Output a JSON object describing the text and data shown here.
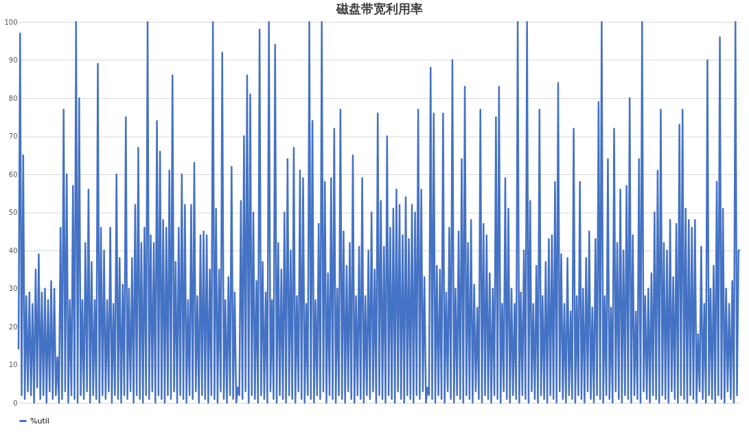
{
  "chart_data": {
    "type": "line",
    "title": "磁盘带宽利用率",
    "categories": [
      null,
      null,
      null,
      null,
      null,
      null,
      null,
      null,
      null,
      null,
      null,
      null,
      null,
      null,
      null,
      null,
      null,
      null,
      null,
      null,
      null,
      null,
      null,
      null,
      null,
      null,
      null,
      null,
      null,
      null,
      null,
      null,
      null,
      null,
      null,
      null,
      null,
      null,
      null,
      null,
      null,
      null,
      null,
      null,
      null,
      null,
      null,
      null,
      null,
      null,
      null,
      null,
      null,
      null,
      null,
      null,
      null,
      null,
      null,
      null,
      null,
      null,
      null,
      null,
      null,
      null,
      null,
      null,
      null,
      null,
      null,
      null,
      null,
      null,
      null,
      null,
      null,
      null,
      null,
      null,
      null,
      null,
      null,
      null,
      null,
      null,
      null,
      null,
      null,
      null,
      null,
      null,
      null,
      null,
      null,
      null,
      null,
      null,
      null,
      null,
      null,
      null,
      null,
      null,
      null,
      null,
      null,
      null,
      null,
      null,
      null,
      null,
      null,
      null,
      null,
      null,
      null,
      null,
      null,
      null,
      null,
      null,
      null,
      null,
      null,
      null,
      null,
      null,
      null,
      null,
      null,
      null,
      null,
      null,
      null,
      null,
      null,
      null,
      null,
      null,
      null,
      null,
      null,
      null,
      null,
      null,
      null,
      null,
      null,
      null,
      null,
      null,
      null,
      null,
      null,
      null,
      null,
      null,
      null,
      null,
      null,
      null,
      null,
      null,
      null,
      null,
      null,
      null,
      null,
      null,
      null,
      null,
      null,
      null,
      null,
      null,
      null,
      null,
      null,
      null,
      null,
      null,
      null,
      null,
      null,
      null,
      null,
      null,
      null,
      null,
      null,
      null,
      null,
      null,
      null,
      null,
      null,
      null,
      null,
      null,
      null,
      null,
      null,
      null,
      null,
      null,
      null,
      null,
      null,
      null,
      null,
      null,
      null,
      null,
      null,
      null,
      null,
      null,
      null,
      null,
      null,
      null,
      null,
      null,
      null,
      null,
      null,
      null,
      null,
      null,
      null,
      null,
      null,
      null,
      null,
      null,
      null,
      null,
      null,
      null,
      null,
      null,
      null,
      null,
      null,
      null,
      null,
      null,
      null,
      null,
      null,
      null,
      null,
      null,
      null,
      null,
      null,
      null,
      null,
      null,
      null,
      null,
      null,
      null,
      null,
      null,
      null,
      null,
      null,
      null,
      null,
      null,
      null,
      null,
      null,
      null,
      null,
      null,
      null,
      null,
      null,
      null,
      null,
      null,
      null,
      null,
      null,
      null,
      null,
      null,
      null,
      null,
      null,
      null,
      null,
      null,
      null,
      null,
      null,
      null,
      null,
      null,
      null,
      null,
      null,
      null,
      null,
      null,
      null,
      null,
      null,
      null,
      null,
      null,
      null,
      null,
      null,
      null,
      null,
      null,
      null,
      null,
      null,
      null,
      null,
      null,
      null,
      null,
      null,
      null,
      null,
      null,
      null,
      null,
      null,
      null,
      null,
      null,
      null,
      null,
      null,
      null,
      null,
      null,
      null,
      null,
      null,
      null,
      null,
      null,
      null,
      null,
      null,
      null,
      null,
      null,
      null,
      null,
      null,
      null,
      null,
      null,
      null,
      null,
      null,
      null,
      null,
      null,
      null,
      null,
      null,
      null,
      null,
      null,
      null,
      null,
      null,
      null,
      null,
      null,
      null,
      null,
      null,
      null,
      null,
      null,
      null,
      null,
      null,
      null,
      null,
      null,
      null,
      null,
      null,
      null,
      null,
      null,
      null,
      null,
      null,
      null,
      null,
      null,
      null,
      null,
      null,
      null,
      null,
      null,
      null,
      null,
      null,
      null,
      null,
      null,
      null,
      null,
      null,
      null,
      null,
      null,
      null,
      null,
      null,
      null,
      null,
      null,
      null,
      null,
      null,
      null,
      null,
      null,
      null,
      null,
      null,
      null,
      null,
      null,
      null,
      null,
      null,
      null,
      null,
      null,
      null,
      null,
      null,
      null,
      null,
      null,
      null,
      null,
      null,
      null,
      null,
      null,
      null,
      null,
      null,
      null,
      null,
      null,
      null
    ],
    "series": [
      {
        "name": "%util",
        "color": "#4472c4",
        "values": [
          14,
          97,
          2,
          65,
          1,
          28,
          3,
          29,
          2,
          26,
          0,
          35,
          4,
          39,
          1,
          29,
          2,
          30,
          0,
          27,
          3,
          32,
          1,
          30,
          2,
          12,
          0,
          46,
          1,
          77,
          3,
          60,
          0,
          27,
          2,
          57,
          1,
          100,
          0,
          80,
          2,
          27,
          1,
          42,
          3,
          56,
          0,
          37,
          2,
          27,
          1,
          89,
          0,
          46,
          2,
          40,
          1,
          27,
          3,
          46,
          0,
          26,
          2,
          60,
          1,
          38,
          0,
          31,
          2,
          75,
          1,
          30,
          3,
          38,
          0,
          52,
          2,
          67,
          1,
          42,
          0,
          46,
          2,
          100,
          1,
          44,
          3,
          42,
          0,
          74,
          2,
          66,
          1,
          48,
          0,
          46,
          2,
          61,
          1,
          86,
          3,
          37,
          0,
          46,
          2,
          60,
          1,
          52,
          0,
          27,
          2,
          52,
          1,
          63,
          3,
          28,
          0,
          44,
          2,
          45,
          1,
          44,
          0,
          35,
          2,
          100,
          1,
          51,
          0,
          35,
          3,
          92,
          1,
          27,
          0,
          33,
          2,
          62,
          1,
          29,
          0,
          4,
          2,
          53,
          1,
          70,
          3,
          86,
          0,
          81,
          2,
          50,
          1,
          32,
          0,
          98,
          2,
          37,
          1,
          29,
          0,
          100,
          3,
          27,
          1,
          94,
          0,
          42,
          2,
          35,
          1,
          50,
          0,
          64,
          2,
          40,
          1,
          67,
          0,
          28,
          3,
          61,
          1,
          59,
          0,
          26,
          2,
          100,
          1,
          74,
          0,
          27,
          2,
          47,
          1,
          100,
          3,
          58,
          0,
          34,
          2,
          59,
          1,
          72,
          0,
          30,
          2,
          77,
          1,
          45,
          0,
          36,
          3,
          42,
          1,
          65,
          0,
          28,
          2,
          41,
          1,
          59,
          0,
          28,
          2,
          40,
          1,
          50,
          3,
          35,
          0,
          76,
          2,
          53,
          1,
          41,
          0,
          70,
          2,
          46,
          1,
          51,
          0,
          56,
          3,
          52,
          1,
          44,
          0,
          54,
          2,
          43,
          1,
          52,
          0,
          50,
          2,
          77,
          1,
          56,
          3,
          33,
          0,
          4,
          2,
          88,
          1,
          76,
          0,
          36,
          2,
          35,
          1,
          76,
          0,
          29,
          3,
          46,
          1,
          90,
          0,
          30,
          2,
          45,
          1,
          64,
          0,
          83,
          2,
          42,
          1,
          48,
          0,
          31,
          3,
          25,
          1,
          77,
          0,
          47,
          2,
          44,
          1,
          34,
          0,
          30,
          2,
          75,
          1,
          83,
          0,
          26,
          3,
          59,
          1,
          51,
          0,
          30,
          2,
          26,
          1,
          100,
          0,
          29,
          2,
          40,
          1,
          100,
          0,
          53,
          3,
          26,
          1,
          36,
          0,
          77,
          2,
          28,
          1,
          37,
          0,
          43,
          2,
          44,
          1,
          58,
          0,
          84,
          3,
          39,
          1,
          26,
          0,
          38,
          2,
          24,
          1,
          72,
          0,
          28,
          2,
          58,
          1,
          30,
          0,
          38,
          3,
          45,
          1,
          25,
          0,
          43,
          2,
          79,
          1,
          100,
          0,
          28,
          2,
          64,
          1,
          25,
          0,
          72,
          3,
          42,
          1,
          56,
          0,
          40,
          2,
          57,
          1,
          80,
          0,
          44,
          2,
          24,
          1,
          64,
          0,
          100,
          3,
          28,
          1,
          30,
          0,
          34,
          2,
          50,
          1,
          61,
          0,
          77,
          2,
          42,
          1,
          40,
          0,
          48,
          3,
          33,
          1,
          47,
          0,
          73,
          2,
          77,
          1,
          51,
          0,
          48,
          2,
          46,
          1,
          48,
          0,
          18,
          3,
          41,
          1,
          26,
          0,
          90,
          2,
          30,
          1,
          36,
          0,
          58,
          2,
          96,
          1,
          51,
          0,
          30,
          3,
          26,
          1,
          32,
          0,
          100,
          2,
          40,
          40
        ]
      }
    ],
    "ylim": [
      0,
      100
    ],
    "yticks": [
      0,
      10,
      20,
      30,
      40,
      50,
      60,
      70,
      80,
      90,
      100
    ],
    "grid": "y",
    "legend": "bottom",
    "tick_labels": "y",
    "line_style": "solid",
    "marker": "none"
  }
}
